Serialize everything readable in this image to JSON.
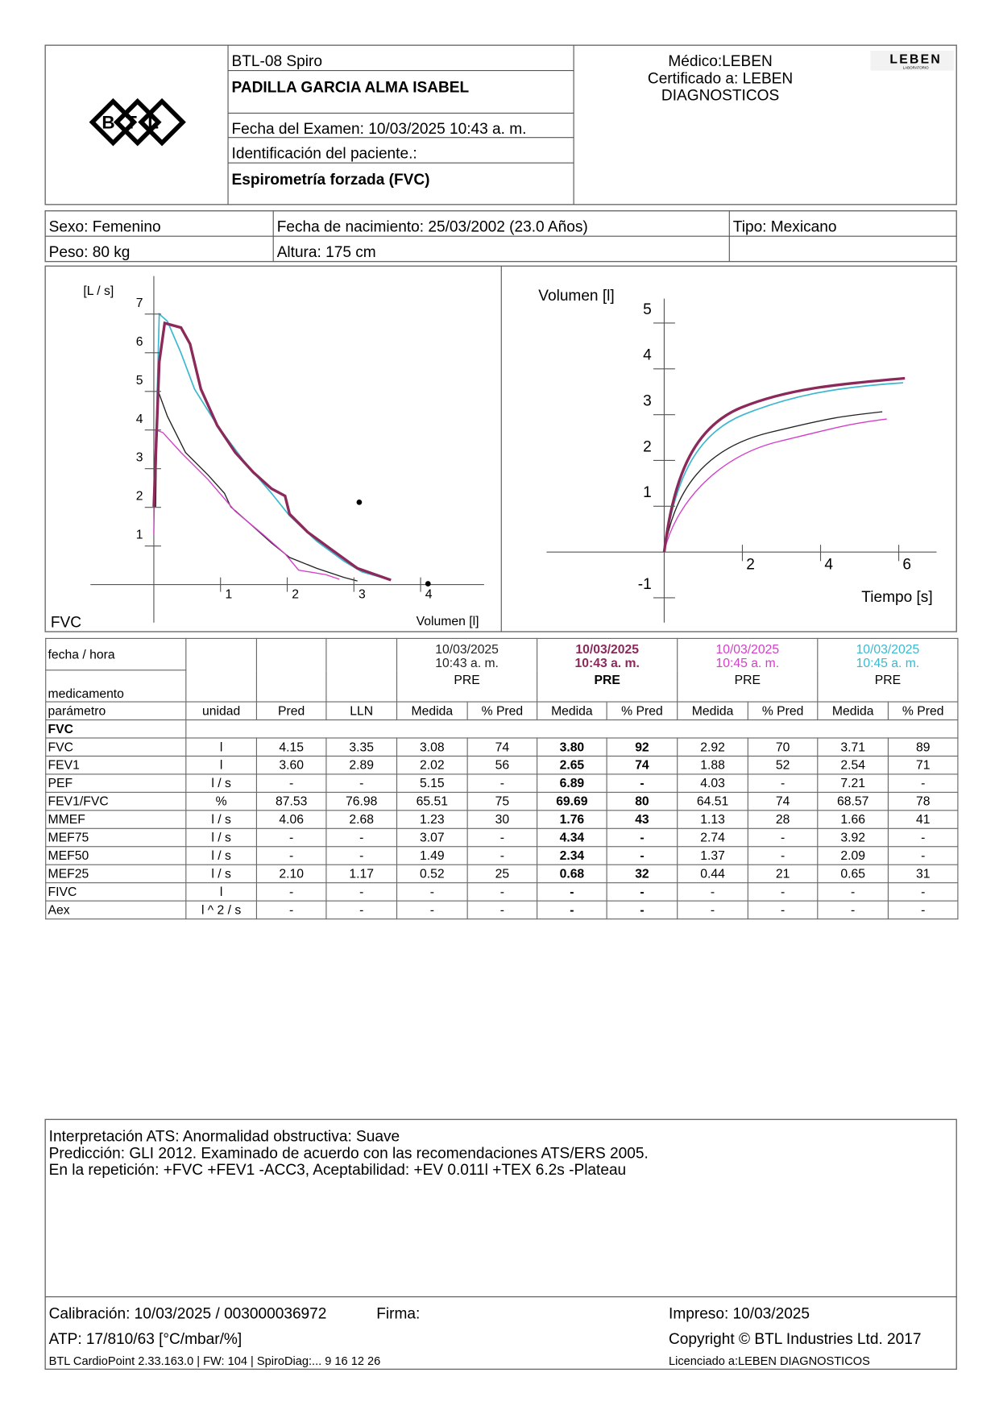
{
  "header": {
    "logo": "BTL",
    "device": "BTL-08 Spiro",
    "patient": "PADILLA GARCIA ALMA ISABEL",
    "exam_date": "Fecha del Examen:  10/03/2025 10:43 a. m.",
    "patient_id": "Identificación del paciente.:",
    "test": "Espirometría forzada (FVC)",
    "doctor": "Médico:LEBEN",
    "certified": "Certificado a: LEBEN",
    "certified_2": "DIAGNOSTICOS",
    "lab_logo": "LEBEN",
    "lab_logo_sub": "LABORATORIO"
  },
  "patient": {
    "sex": "Sexo: Femenino",
    "birth": "Fecha de nacimiento: 25/03/2002 (23.0 Años)",
    "type": "Tipo: Mexicano",
    "weight": "Peso: 80 kg",
    "height": "Altura: 175 cm"
  },
  "flow_volume": {
    "y_label": "[L / s]",
    "x_label": "Volumen [l]",
    "corner": "FVC",
    "yticks": [
      1,
      2,
      3,
      4,
      5,
      6,
      7
    ],
    "xticks": [
      1,
      2,
      3,
      4
    ]
  },
  "volume_time": {
    "y_label": "Volumen [l]",
    "x_label": "Tiempo [s]",
    "yticks": [
      -1,
      1,
      2,
      3,
      4,
      5
    ],
    "xticks": [
      2,
      4,
      6
    ]
  },
  "table": {
    "date_label": "fecha / hora",
    "medication_label": "medicamento",
    "trials": [
      {
        "date": "10/03/2025",
        "time": "10:43 a. m.",
        "medication": "PRE",
        "color": "#222222",
        "bold": false
      },
      {
        "date": "10/03/2025",
        "time": "10:43 a. m.",
        "medication": "PRE",
        "color": "#8b2a5a",
        "bold": true
      },
      {
        "date": "10/03/2025",
        "time": "10:45 a. m.",
        "medication": "PRE",
        "color": "#d23fc8",
        "bold": false
      },
      {
        "date": "10/03/2025",
        "time": "10:45 a. m.",
        "medication": "PRE",
        "color": "#3bb8d0",
        "bold": false
      }
    ],
    "columns": [
      "parámetro",
      "unidad",
      "Pred",
      "LLN",
      "Medida",
      "% Pred",
      "Medida",
      "% Pred",
      "Medida",
      "% Pred",
      "Medida",
      "% Pred"
    ],
    "section": "FVC",
    "rows": [
      [
        "FVC",
        "l",
        "4.15",
        "3.35",
        "3.08",
        "74",
        "3.80",
        "92",
        "2.92",
        "70",
        "3.71",
        "89"
      ],
      [
        "FEV1",
        "l",
        "3.60",
        "2.89",
        "2.02",
        "56",
        "2.65",
        "74",
        "1.88",
        "52",
        "2.54",
        "71"
      ],
      [
        "PEF",
        "l / s",
        "-",
        "-",
        "5.15",
        "-",
        "6.89",
        "-",
        "4.03",
        "-",
        "7.21",
        "-"
      ],
      [
        "FEV1/FVC",
        "%",
        "87.53",
        "76.98",
        "65.51",
        "75",
        "69.69",
        "80",
        "64.51",
        "74",
        "68.57",
        "78"
      ],
      [
        "MMEF",
        "l / s",
        "4.06",
        "2.68",
        "1.23",
        "30",
        "1.76",
        "43",
        "1.13",
        "28",
        "1.66",
        "41"
      ],
      [
        "MEF75",
        "l / s",
        "-",
        "-",
        "3.07",
        "-",
        "4.34",
        "-",
        "2.74",
        "-",
        "3.92",
        "-"
      ],
      [
        "MEF50",
        "l / s",
        "-",
        "-",
        "1.49",
        "-",
        "2.34",
        "-",
        "1.37",
        "-",
        "2.09",
        "-"
      ],
      [
        "MEF25",
        "l / s",
        "2.10",
        "1.17",
        "0.52",
        "25",
        "0.68",
        "32",
        "0.44",
        "21",
        "0.65",
        "31"
      ],
      [
        "FIVC",
        "l",
        "-",
        "-",
        "-",
        "-",
        "-",
        "-",
        "-",
        "-",
        "-",
        "-"
      ],
      [
        "Aex",
        "l ^ 2 / s",
        "-",
        "-",
        "-",
        "-",
        "-",
        "-",
        "-",
        "-",
        "-",
        "-"
      ]
    ]
  },
  "interpretation": [
    "Interpretación ATS: Anormalidad obstructiva: Suave",
    "Predicción: GLI 2012. Examinado de acuerdo con las recomendaciones ATS/ERS 2005.",
    "En la repetición: +FVC +FEV1 -ACC3, Aceptabilidad: +EV 0.011l +TEX 6.2s -Plateau"
  ],
  "footer": {
    "calibration": "Calibración: 10/03/2025 / 003000036972",
    "signature": "Firma:",
    "printed": "Impreso: 10/03/2025",
    "atp": "ATP: 17/810/63 [°C/mbar/%]",
    "copyright": "Copyright © BTL Industries Ltd. 2017",
    "software": "BTL CardioPoint 2.33.163.0 | FW: 104 | SpiroDiag:... 9 16 12 26",
    "license": "Licenciado a:LEBEN DIAGNOSTICOS"
  }
}
